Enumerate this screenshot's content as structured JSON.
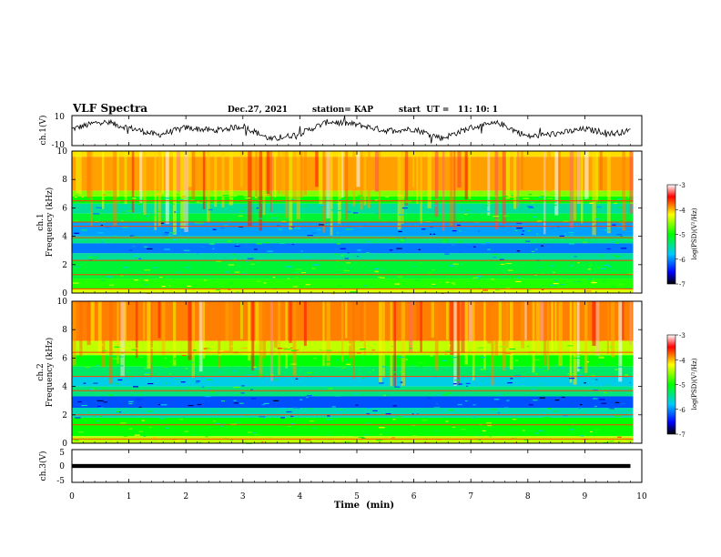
{
  "header": {
    "title": "VLF Spectra",
    "date": "Dec.27, 2021",
    "station": "station= KAP",
    "start": "start  UT =   11: 10: 1"
  },
  "chart_data": [
    {
      "type": "line",
      "panel": "ch1-waveform",
      "ylabel": "ch.1(V)",
      "ylim": [
        -10,
        10
      ],
      "yticks": [
        "10",
        "-10"
      ],
      "x": [
        0,
        0.5,
        1,
        1.5,
        2,
        2.5,
        3,
        3.5,
        4,
        4.5,
        5,
        5.5,
        6,
        6.5,
        7,
        7.5,
        8,
        8.5,
        9,
        9.5,
        9.8
      ],
      "values": [
        1,
        6,
        2,
        -3,
        2,
        0,
        3,
        -6,
        -2,
        6,
        4,
        0,
        1,
        -5,
        2,
        5,
        -4,
        -2,
        1,
        -2,
        0
      ]
    },
    {
      "type": "heatmap",
      "panel": "ch1-spectrogram",
      "ylabel": "ch.1\nFrequency  (kHz)",
      "ylim": [
        0,
        10
      ],
      "yticks": [
        "0",
        "2",
        "4",
        "6",
        "8",
        "10"
      ],
      "xlim": [
        0,
        9.85
      ],
      "bands_khz": [
        {
          "from": 9.6,
          "to": 10.0,
          "level": -4.1
        },
        {
          "from": 7.2,
          "to": 9.6,
          "level": -3.9
        },
        {
          "from": 6.8,
          "to": 7.2,
          "level": -4.6
        },
        {
          "from": 6.3,
          "to": 6.8,
          "level": -5.0
        },
        {
          "from": 5.6,
          "to": 6.3,
          "level": -5.6
        },
        {
          "from": 5.0,
          "to": 5.6,
          "level": -5.2
        },
        {
          "from": 4.0,
          "to": 5.0,
          "level": -6.1
        },
        {
          "from": 3.5,
          "to": 4.0,
          "level": -5.5
        },
        {
          "from": 2.8,
          "to": 3.5,
          "level": -6.2
        },
        {
          "from": 2.3,
          "to": 2.8,
          "level": -5.6
        },
        {
          "from": 1.0,
          "to": 2.3,
          "level": -5.2
        },
        {
          "from": 0.3,
          "to": 1.0,
          "level": -4.9
        },
        {
          "from": 0.0,
          "to": 0.3,
          "level": -4.3
        }
      ],
      "lines_khz": [
        0.3,
        1.3,
        2.3,
        3.9,
        4.7,
        5.0,
        6.5
      ]
    },
    {
      "type": "heatmap",
      "panel": "ch2-spectrogram",
      "ylabel": "ch.2\nFrequency  (kHz)",
      "ylim": [
        0,
        10
      ],
      "yticks": [
        "0",
        "2",
        "4",
        "6",
        "8",
        "10"
      ],
      "xlim": [
        0,
        9.85
      ],
      "bands_khz": [
        {
          "from": 7.2,
          "to": 10.0,
          "level": -3.8
        },
        {
          "from": 6.2,
          "to": 7.2,
          "level": -4.4
        },
        {
          "from": 5.4,
          "to": 6.2,
          "level": -5.0
        },
        {
          "from": 4.7,
          "to": 5.4,
          "level": -5.4
        },
        {
          "from": 4.0,
          "to": 4.7,
          "level": -5.9
        },
        {
          "from": 3.3,
          "to": 4.0,
          "level": -5.5
        },
        {
          "from": 2.5,
          "to": 3.3,
          "level": -6.3
        },
        {
          "from": 1.8,
          "to": 2.5,
          "level": -5.7
        },
        {
          "from": 0.5,
          "to": 1.8,
          "level": -5.0
        },
        {
          "from": 0.0,
          "to": 0.5,
          "level": -4.4
        }
      ],
      "lines_khz": [
        0.3,
        1.3,
        2.0,
        3.7,
        4.7,
        6.4
      ]
    },
    {
      "type": "line",
      "panel": "ch3-waveform",
      "ylabel": "ch.3(V)",
      "ylim": [
        -5,
        5
      ],
      "yticks": [
        "5",
        "0",
        "-5"
      ],
      "x": [
        0,
        9.8
      ],
      "values": [
        0,
        0
      ],
      "band_half_width": 0.6
    }
  ],
  "colorbars": [
    {
      "label": "log(PSD)(V²/Hz)",
      "ticks": [
        "-3",
        "-4",
        "-5",
        "-6",
        "-7"
      ],
      "range": [
        -7,
        -3
      ]
    },
    {
      "label": "log(PSD)(V²/Hz)",
      "ticks": [
        "-3",
        "-4",
        "-5",
        "-6",
        "-7"
      ],
      "range": [
        -7,
        -3
      ]
    }
  ],
  "x_axis": {
    "label": "Time  (min)",
    "ticks": [
      "0",
      "1",
      "2",
      "3",
      "4",
      "5",
      "6",
      "7",
      "8",
      "9",
      "10"
    ],
    "xlim": [
      0,
      10
    ]
  }
}
